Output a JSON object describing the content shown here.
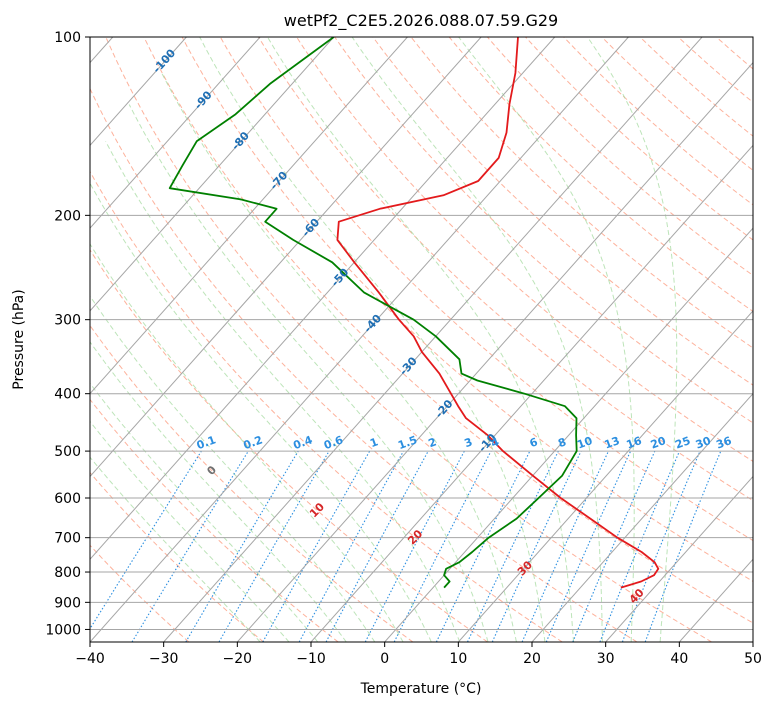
{
  "chart_data": {
    "type": "skewt",
    "title": "wetPf2_C2E5.2026.088.07.59.G29",
    "xlabel": "Temperature (°C)",
    "ylabel": "Pressure (hPa)",
    "xlim": [
      -40,
      50
    ],
    "ylim": [
      1050,
      100
    ],
    "x_ticks": [
      "−40",
      "−30",
      "−20",
      "−10",
      "0",
      "10",
      "20",
      "30",
      "40",
      "50"
    ],
    "x_tick_values": [
      -40,
      -30,
      -20,
      -10,
      0,
      10,
      20,
      30,
      40,
      50
    ],
    "y_ticks": [
      "100",
      "200",
      "300",
      "400",
      "500",
      "600",
      "700",
      "800",
      "900",
      "1000"
    ],
    "y_tick_values": [
      100,
      200,
      300,
      400,
      500,
      600,
      700,
      800,
      900,
      1000
    ],
    "colors": {
      "temperature": "#e31a1c",
      "dewpoint": "#008000",
      "isotherm": "#a6a6a6",
      "dry_adiabat": "#fc9272",
      "moist_adiabat": "#a1d99b",
      "mixing_ratio": "#2c8fe0",
      "isotherm_label": "#1f6fb4",
      "adiabat_label": "#d62728"
    },
    "isotherm_labels": [
      "-100",
      "-90",
      "-80",
      "-70",
      "-60",
      "-50",
      "-40",
      "-30",
      "-20",
      "-10"
    ],
    "isotherm_label_values": [
      -100,
      -90,
      -80,
      -70,
      -60,
      -50,
      -40,
      -30,
      -20,
      -10
    ],
    "mixing_ratio_labels": [
      "0.1",
      "0.2",
      "0.4",
      "0.6",
      "1",
      "1.5",
      "2",
      "3",
      "4",
      "6",
      "8",
      "10",
      "13",
      "16",
      "20",
      "25",
      "30",
      "36"
    ],
    "mixing_ratio_values": [
      0.1,
      0.2,
      0.4,
      0.6,
      1,
      1.5,
      2,
      3,
      4,
      6,
      8,
      10,
      13,
      16,
      20,
      25,
      30,
      36
    ],
    "adiabat_labels": [
      "0",
      "10",
      "20",
      "30",
      "40"
    ],
    "adiabat_label_values": [
      0,
      10,
      20,
      30,
      40
    ],
    "series": [
      {
        "name": "Temperature",
        "pressure": [
          850,
          830,
          810,
          790,
          770,
          740,
          700,
          650,
          600,
          550,
          500,
          470,
          440,
          420,
          400,
          370,
          340,
          320,
          300,
          270,
          240,
          220,
          205,
          195,
          185,
          175,
          160,
          145,
          130,
          115,
          100
        ],
        "temperature": [
          25.5,
          27.5,
          28.5,
          28.3,
          27.0,
          24.0,
          19.0,
          13.0,
          6.5,
          0.0,
          -7.0,
          -11.0,
          -16.0,
          -18.5,
          -21.0,
          -25.0,
          -30.0,
          -33.0,
          -37.0,
          -43.0,
          -50.0,
          -55.0,
          -57.0,
          -53.0,
          -46.0,
          -43.0,
          -43.0,
          -45.0,
          -48.0,
          -51.0,
          -55.0
        ]
      },
      {
        "name": "Dewpoint",
        "pressure": [
          850,
          830,
          810,
          790,
          770,
          740,
          700,
          650,
          600,
          550,
          500,
          470,
          440,
          420,
          400,
          380,
          370,
          350,
          320,
          300,
          270,
          240,
          220,
          205,
          195,
          188,
          180,
          165,
          150,
          135,
          120,
          100
        ],
        "temperature": [
          1.5,
          1.5,
          0.0,
          -0.5,
          0.5,
          1.0,
          1.5,
          3.0,
          3.5,
          4.0,
          3.0,
          1.0,
          -1.0,
          -4.0,
          -11.0,
          -19.0,
          -22.0,
          -24.0,
          -30.0,
          -35.0,
          -45.0,
          -53.0,
          -61.0,
          -67.0,
          -67.0,
          -73.0,
          -84.0,
          -85.0,
          -86.0,
          -84.0,
          -83.0,
          -80.0
        ]
      }
    ]
  }
}
